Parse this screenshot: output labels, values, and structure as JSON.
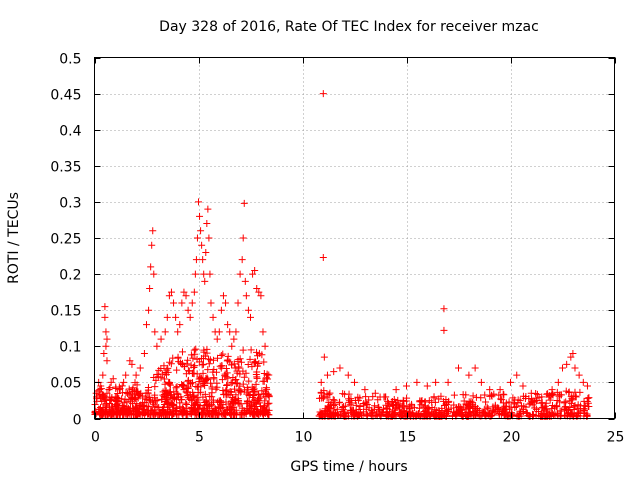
{
  "chart_data": {
    "type": "scatter",
    "title": "Day 328 of 2016, Rate Of TEC Index for receiver mzac",
    "xlabel": "GPS time / hours",
    "ylabel": "ROTI / TECUs",
    "xlim": [
      0,
      25
    ],
    "ylim": [
      0,
      0.5
    ],
    "x_ticks": [
      0,
      5,
      10,
      15,
      20,
      25
    ],
    "x_tick_labels": [
      "0",
      "5",
      "10",
      "15",
      "20",
      "25"
    ],
    "y_ticks": [
      0,
      0.05,
      0.1,
      0.15,
      0.2,
      0.25,
      0.3,
      0.35,
      0.4,
      0.45,
      0.5
    ],
    "y_tick_labels": [
      "0",
      "0.05",
      "0.1",
      "0.15",
      "0.2",
      "0.25",
      "0.3",
      "0.35",
      "0.4",
      "0.45",
      "0.5"
    ],
    "grid": true,
    "marker": "+",
    "series": [
      {
        "name": "ROTI",
        "color": "#ff0000",
        "points": [
          [
            0.1,
            0.03
          ],
          [
            0.2,
            0.05
          ],
          [
            0.3,
            0.045
          ],
          [
            0.4,
            0.06
          ],
          [
            0.45,
            0.09
          ],
          [
            0.5,
            0.155
          ],
          [
            0.5,
            0.14
          ],
          [
            0.55,
            0.12
          ],
          [
            0.6,
            0.11
          ],
          [
            0.55,
            0.1
          ],
          [
            0.6,
            0.08
          ],
          [
            0.7,
            0.04
          ],
          [
            0.8,
            0.05
          ],
          [
            0.9,
            0.055
          ],
          [
            1.0,
            0.03
          ],
          [
            1.2,
            0.04
          ],
          [
            1.4,
            0.05
          ],
          [
            1.5,
            0.06
          ],
          [
            1.7,
            0.08
          ],
          [
            1.8,
            0.075
          ],
          [
            2.0,
            0.06
          ],
          [
            2.2,
            0.07
          ],
          [
            2.4,
            0.09
          ],
          [
            2.5,
            0.13
          ],
          [
            2.6,
            0.15
          ],
          [
            2.65,
            0.18
          ],
          [
            2.7,
            0.21
          ],
          [
            2.75,
            0.24
          ],
          [
            2.8,
            0.26
          ],
          [
            2.85,
            0.2
          ],
          [
            2.9,
            0.12
          ],
          [
            3.0,
            0.1
          ],
          [
            3.2,
            0.11
          ],
          [
            3.4,
            0.12
          ],
          [
            3.5,
            0.14
          ],
          [
            3.6,
            0.17
          ],
          [
            3.7,
            0.175
          ],
          [
            3.8,
            0.16
          ],
          [
            3.9,
            0.14
          ],
          [
            4.0,
            0.12
          ],
          [
            4.1,
            0.13
          ],
          [
            4.2,
            0.16
          ],
          [
            4.3,
            0.175
          ],
          [
            4.4,
            0.17
          ],
          [
            4.5,
            0.15
          ],
          [
            4.6,
            0.14
          ],
          [
            4.7,
            0.16
          ],
          [
            4.8,
            0.175
          ],
          [
            4.85,
            0.2
          ],
          [
            4.9,
            0.22
          ],
          [
            4.95,
            0.25
          ],
          [
            5.0,
            0.3
          ],
          [
            5.05,
            0.28
          ],
          [
            5.1,
            0.26
          ],
          [
            5.15,
            0.24
          ],
          [
            5.2,
            0.22
          ],
          [
            5.25,
            0.2
          ],
          [
            5.3,
            0.19
          ],
          [
            5.35,
            0.23
          ],
          [
            5.4,
            0.27
          ],
          [
            5.45,
            0.29
          ],
          [
            5.5,
            0.25
          ],
          [
            5.55,
            0.2
          ],
          [
            5.6,
            0.16
          ],
          [
            5.7,
            0.14
          ],
          [
            5.8,
            0.12
          ],
          [
            5.9,
            0.11
          ],
          [
            6.0,
            0.12
          ],
          [
            6.1,
            0.15
          ],
          [
            6.2,
            0.17
          ],
          [
            6.3,
            0.16
          ],
          [
            6.4,
            0.13
          ],
          [
            6.5,
            0.12
          ],
          [
            6.6,
            0.1
          ],
          [
            6.7,
            0.11
          ],
          [
            6.8,
            0.12
          ],
          [
            6.9,
            0.16
          ],
          [
            7.0,
            0.2
          ],
          [
            7.1,
            0.22
          ],
          [
            7.15,
            0.25
          ],
          [
            7.2,
            0.298
          ],
          [
            7.25,
            0.19
          ],
          [
            7.3,
            0.17
          ],
          [
            7.4,
            0.15
          ],
          [
            7.5,
            0.14
          ],
          [
            7.6,
            0.2
          ],
          [
            7.7,
            0.205
          ],
          [
            7.8,
            0.18
          ],
          [
            7.9,
            0.175
          ],
          [
            8.0,
            0.17
          ],
          [
            8.1,
            0.12
          ],
          [
            8.2,
            0.1
          ],
          [
            8.3,
            0.06
          ],
          [
            11.0,
            0.45
          ],
          [
            11.0,
            0.223
          ],
          [
            11.05,
            0.085
          ],
          [
            10.9,
            0.05
          ],
          [
            11.2,
            0.06
          ],
          [
            11.5,
            0.065
          ],
          [
            11.8,
            0.07
          ],
          [
            12.2,
            0.06
          ],
          [
            12.5,
            0.05
          ],
          [
            13.0,
            0.04
          ],
          [
            13.5,
            0.035
          ],
          [
            14.0,
            0.03
          ],
          [
            14.5,
            0.04
          ],
          [
            15.0,
            0.045
          ],
          [
            15.5,
            0.05
          ],
          [
            16.0,
            0.045
          ],
          [
            16.4,
            0.05
          ],
          [
            16.8,
            0.152
          ],
          [
            16.8,
            0.122
          ],
          [
            17.0,
            0.05
          ],
          [
            17.5,
            0.07
          ],
          [
            18.0,
            0.06
          ],
          [
            18.3,
            0.07
          ],
          [
            18.6,
            0.05
          ],
          [
            19.0,
            0.04
          ],
          [
            19.5,
            0.04
          ],
          [
            20.0,
            0.05
          ],
          [
            20.3,
            0.06
          ],
          [
            20.6,
            0.045
          ],
          [
            21.0,
            0.035
          ],
          [
            21.5,
            0.03
          ],
          [
            22.0,
            0.04
          ],
          [
            22.3,
            0.05
          ],
          [
            22.5,
            0.07
          ],
          [
            22.7,
            0.075
          ],
          [
            22.9,
            0.085
          ],
          [
            23.0,
            0.09
          ],
          [
            23.1,
            0.07
          ],
          [
            23.3,
            0.06
          ],
          [
            23.5,
            0.05
          ],
          [
            23.7,
            0.045
          ]
        ],
        "dense_bands": [
          {
            "x": [
              0.0,
              8.4
            ],
            "y": [
              0.005,
              0.06
            ],
            "density": 900,
            "upper_shape": [
              [
                0,
                0.04
              ],
              [
                1,
                0.045
              ],
              [
                2,
                0.05
              ],
              [
                3,
                0.07
              ],
              [
                4,
                0.09
              ],
              [
                5,
                0.1
              ],
              [
                6,
                0.09
              ],
              [
                7,
                0.1
              ],
              [
                8,
                0.095
              ],
              [
                8.4,
                0.06
              ]
            ]
          },
          {
            "x": [
              10.8,
              23.8
            ],
            "y": [
              0.003,
              0.03
            ],
            "density": 700,
            "upper_shape": [
              [
                10.8,
                0.04
              ],
              [
                12,
                0.035
              ],
              [
                14,
                0.03
              ],
              [
                16,
                0.03
              ],
              [
                18,
                0.035
              ],
              [
                20,
                0.035
              ],
              [
                22,
                0.035
              ],
              [
                23,
                0.05
              ],
              [
                23.8,
                0.03
              ]
            ]
          }
        ]
      }
    ]
  }
}
